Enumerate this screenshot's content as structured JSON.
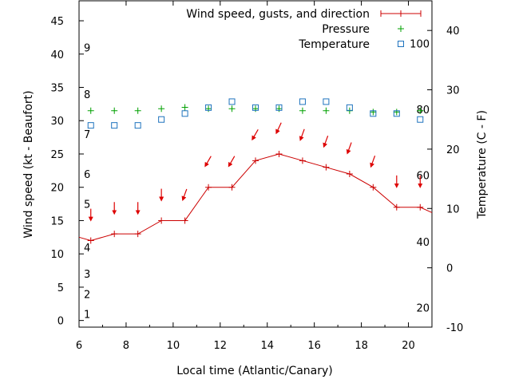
{
  "chart_data": {
    "type": "line",
    "xlabel": "Local time (Atlantic/Canary)",
    "ylabel": "Wind speed (kt - Beaufort)",
    "y2label": "Temperature (C - F)",
    "xlim": [
      6,
      21
    ],
    "ylim": [
      -1,
      48
    ],
    "y2lim": [
      -10,
      45
    ],
    "grid": false,
    "legend_position": "top-right",
    "x_ticks": [
      "6",
      "8",
      "10",
      "12",
      "14",
      "16",
      "18",
      "20"
    ],
    "y_ticks": [
      "0",
      "5",
      "10",
      "15",
      "20",
      "25",
      "30",
      "35",
      "40",
      "45"
    ],
    "y2_ticks": [
      "-10",
      "0",
      "10",
      "20",
      "30",
      "40"
    ],
    "beaufort_labels": [
      {
        "text": "1",
        "y": 1
      },
      {
        "text": "2",
        "y": 4
      },
      {
        "text": "3",
        "y": 7
      },
      {
        "text": "4",
        "y": 11
      },
      {
        "text": "5",
        "y": 17.5
      },
      {
        "text": "6",
        "y": 22
      },
      {
        "text": "7",
        "y": 28
      },
      {
        "text": "8",
        "y": 34
      },
      {
        "text": "9",
        "y": 41
      }
    ],
    "fahrenheit_labels": [
      {
        "text": "20",
        "c": -6.7
      },
      {
        "text": "40",
        "c": 4.4
      },
      {
        "text": "60",
        "c": 15.6
      },
      {
        "text": "80",
        "c": 26.7
      },
      {
        "text": "100",
        "c": 37.8
      }
    ],
    "series": [
      {
        "name": "Wind speed, gusts, and direction",
        "color": "#cc0000",
        "x": [
          6.5,
          7.5,
          8.5,
          9.5,
          10.5,
          11.5,
          12.5,
          13.5,
          14.5,
          15.5,
          16.5,
          17.5,
          18.5,
          19.5,
          20.5
        ],
        "y": [
          12,
          13,
          13,
          15,
          15,
          20,
          20,
          24,
          25,
          24,
          23,
          22,
          20,
          17,
          17
        ],
        "line_start": [
          6,
          12.5
        ],
        "line_end": [
          21,
          16.2
        ]
      },
      {
        "name": "Pressure",
        "color": "#00a000",
        "x": [
          6.5,
          7.5,
          8.5,
          9.5,
          10.5,
          11.5,
          12.5,
          13.5,
          14.5,
          15.5,
          16.5,
          17.5,
          18.5,
          19.5,
          20.5
        ],
        "y": [
          31.5,
          31.5,
          31.5,
          31.8,
          32,
          31.8,
          31.8,
          31.8,
          31.8,
          31.5,
          31.5,
          31.5,
          31.3,
          31.3,
          31.5
        ]
      },
      {
        "name": "Temperature",
        "color": "#1e73be",
        "x": [
          6.5,
          7.5,
          8.5,
          9.5,
          10.5,
          11.5,
          12.5,
          13.5,
          14.5,
          15.5,
          16.5,
          17.5,
          18.5,
          19.5,
          20.5
        ],
        "y": [
          24,
          24,
          24,
          25,
          26,
          27,
          28,
          27,
          27,
          28,
          28,
          27,
          26,
          26,
          25
        ]
      }
    ],
    "direction_arrows": {
      "color": "#dd0000",
      "x": [
        6.5,
        7.5,
        8.5,
        9.5,
        10.5,
        11.5,
        12.5,
        13.5,
        14.5,
        15.5,
        16.5,
        17.5,
        18.5,
        19.5,
        20.5
      ],
      "y": [
        16,
        17,
        17,
        19,
        19,
        24,
        24,
        28,
        29,
        28,
        27,
        26,
        24,
        21,
        21
      ],
      "angle_deg": [
        0,
        0,
        0,
        0,
        20,
        30,
        30,
        30,
        25,
        20,
        20,
        20,
        20,
        0,
        0
      ]
    }
  }
}
